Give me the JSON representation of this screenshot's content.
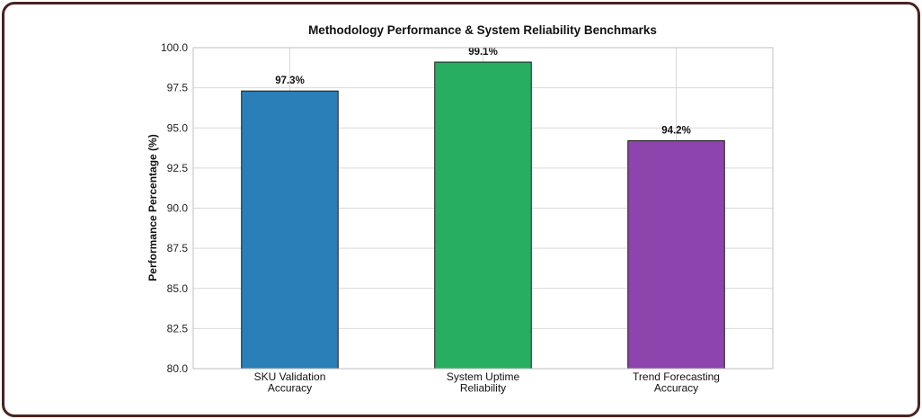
{
  "chart_data": {
    "type": "bar",
    "title": "Methodology Performance & System Reliability Benchmarks",
    "xlabel": "",
    "ylabel": "Performance Percentage (%)",
    "ylim": [
      80.0,
      100.0
    ],
    "yticks": [
      "80.0",
      "82.5",
      "85.0",
      "87.5",
      "90.0",
      "92.5",
      "95.0",
      "97.5",
      "100.0"
    ],
    "grid": true,
    "categories": [
      [
        "SKU Validation",
        "Accuracy"
      ],
      [
        "System Uptime",
        "Reliability"
      ],
      [
        "Trend Forecasting",
        "Accuracy"
      ]
    ],
    "values": [
      97.3,
      99.1,
      94.2
    ],
    "data_labels": [
      "97.3%",
      "99.1%",
      "94.2%"
    ],
    "colors": [
      "#2a7fb8",
      "#27ae60",
      "#8e44ad"
    ],
    "bar_edge_color": "#1a1a1a",
    "grid_color": "#d9d9d9",
    "frame_color": "#4a2320"
  }
}
